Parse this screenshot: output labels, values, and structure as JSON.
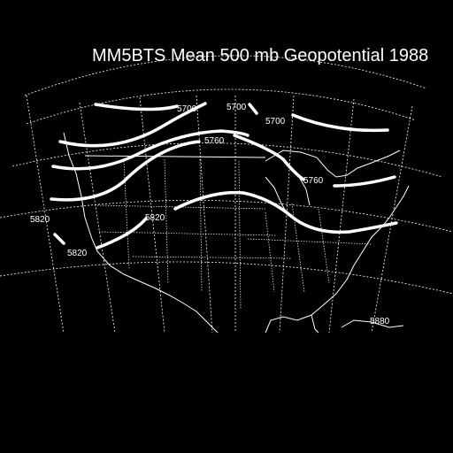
{
  "title": "MM5BTS Mean 500 mb Geopotential 1988",
  "contour_labels": [
    {
      "id": "5700-a",
      "text": "5700"
    },
    {
      "id": "5700-b",
      "text": "5700"
    },
    {
      "id": "5700-c",
      "text": "5700"
    },
    {
      "id": "5760-a",
      "text": "5760"
    },
    {
      "id": "5760-b",
      "text": "5760"
    },
    {
      "id": "5820-a",
      "text": "5820"
    },
    {
      "id": "5820-b",
      "text": "5820"
    },
    {
      "id": "5820-c",
      "text": "5820"
    },
    {
      "id": "5880-a",
      "text": "5880"
    }
  ],
  "colors": {
    "background": "#000000",
    "foreground": "#ffffff"
  }
}
